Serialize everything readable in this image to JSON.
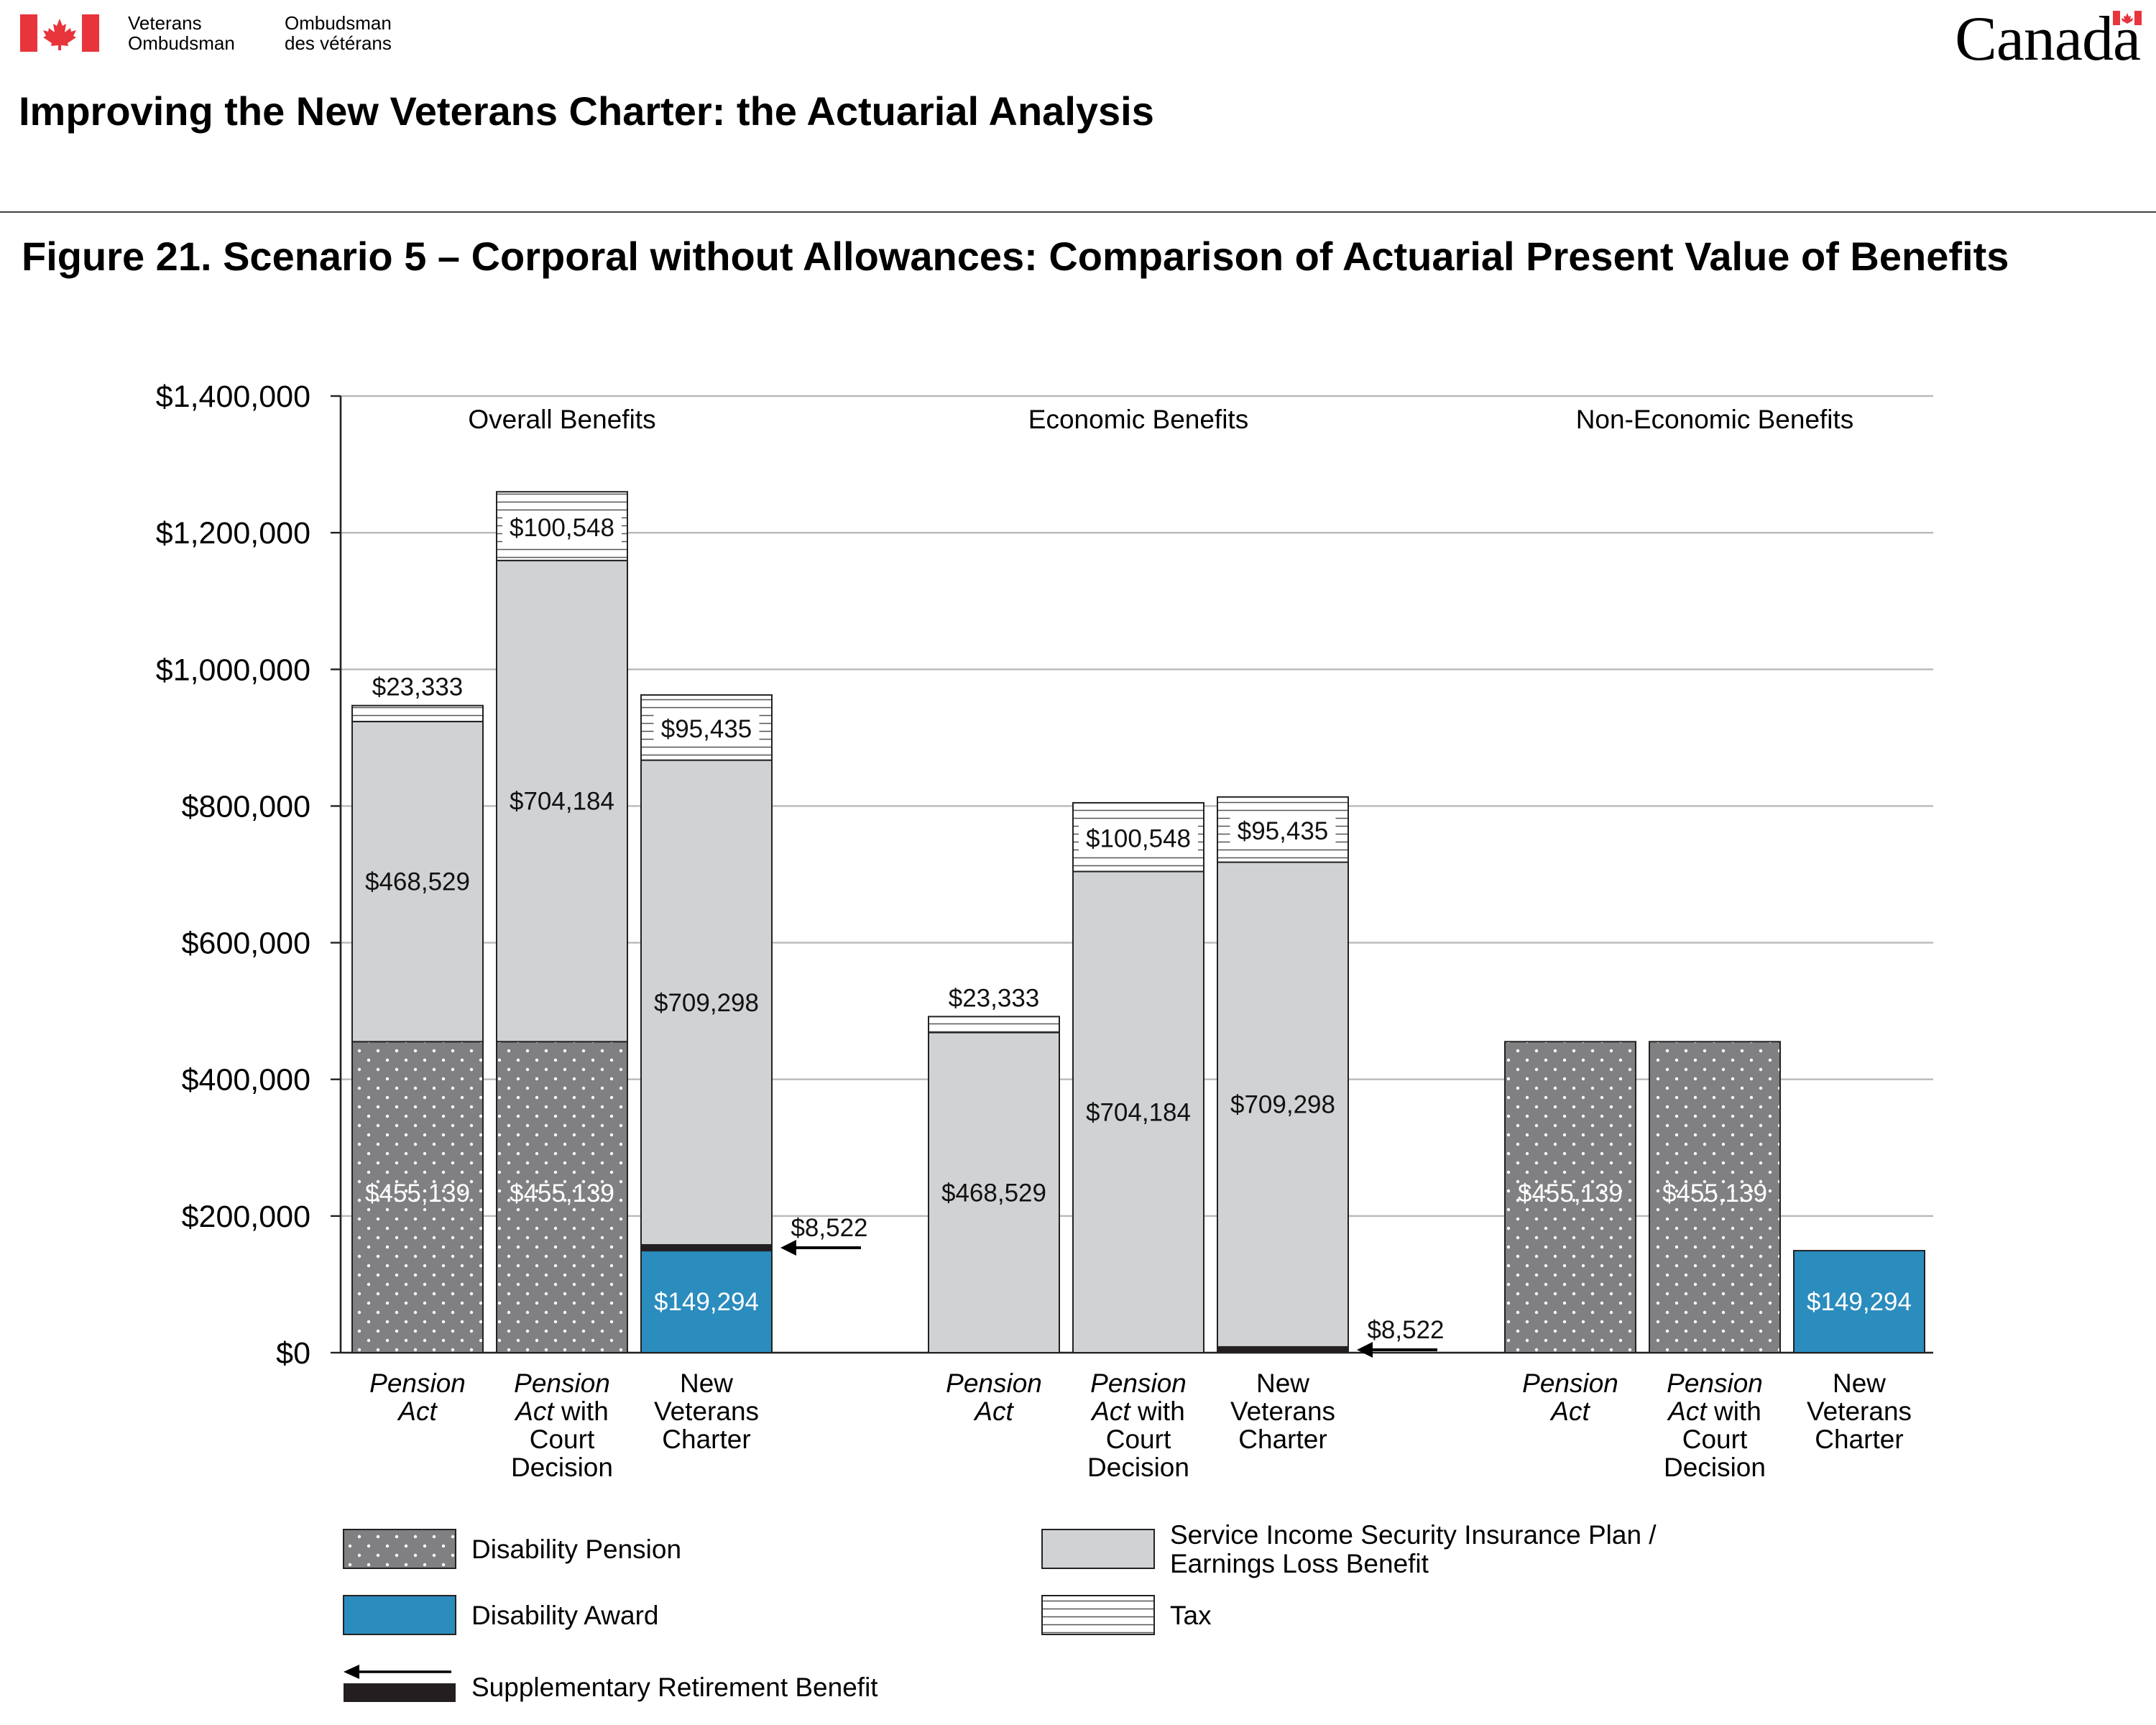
{
  "header": {
    "org_line1_en": "Veterans",
    "org_line2_en": "Ombudsman",
    "org_line1_fr": "Ombudsman",
    "org_line2_fr": "des vétérans",
    "wordmark": "Canada",
    "flag_color": "#e8343b"
  },
  "document_title": "Improving the New Veterans Charter: the Actuarial Analysis",
  "figure_title": "Figure 21. Scenario 5 – Corporal without Allowances: Comparison of Actuarial Present Value of Benefits",
  "chart_data": {
    "type": "bar",
    "stacked": true,
    "y_ticks": [
      "$1,400,000",
      "$1,200,000",
      "$1,000,000",
      "$800,000",
      "$600,000",
      "$400,000",
      "$200,000",
      "$0"
    ],
    "ylim": [
      0,
      1400000
    ],
    "grid": true,
    "groups": [
      {
        "name": "Overall Benefits",
        "bars": [
          {
            "label_parts": [
              [
                "Pension",
                "i"
              ],
              [
                "Act",
                "i"
              ]
            ],
            "segments": [
              {
                "kind": "Disability Pension",
                "value": 455139,
                "label": "$455,139"
              },
              {
                "kind": "Service Income Security Insurance Plan / Earnings Loss Benefit",
                "value": 468529,
                "label": "$468,529"
              },
              {
                "kind": "Tax",
                "value": 23333,
                "label": "$23,333"
              }
            ]
          },
          {
            "label_parts": [
              [
                "Pension",
                "i"
              ],
              [
                "Act|i| with",
                "m"
              ],
              [
                "Court",
                "n"
              ],
              [
                "Decision",
                "n"
              ]
            ],
            "segments": [
              {
                "kind": "Disability Pension",
                "value": 455139,
                "label": "$455,139"
              },
              {
                "kind": "Service Income Security Insurance Plan / Earnings Loss Benefit",
                "value": 704184,
                "label": "$704,184"
              },
              {
                "kind": "Tax",
                "value": 100548,
                "label": "$100,548"
              }
            ]
          },
          {
            "label_parts": [
              [
                "New",
                "n"
              ],
              [
                "Veterans",
                "n"
              ],
              [
                "Charter",
                "n"
              ]
            ],
            "segments": [
              {
                "kind": "Disability Award",
                "value": 149294,
                "label": "$149,294"
              },
              {
                "kind": "Supplementary Retirement Benefit",
                "value": 8522,
                "label": "$8,522"
              },
              {
                "kind": "Service Income Security Insurance Plan / Earnings Loss Benefit",
                "value": 709298,
                "label": "$709,298"
              },
              {
                "kind": "Tax",
                "value": 95435,
                "label": "$95,435"
              }
            ]
          }
        ]
      },
      {
        "name": "Economic Benefits",
        "bars": [
          {
            "label_parts": [
              [
                "Pension",
                "i"
              ],
              [
                "Act",
                "i"
              ]
            ],
            "segments": [
              {
                "kind": "Service Income Security Insurance Plan / Earnings Loss Benefit",
                "value": 468529,
                "label": "$468,529"
              },
              {
                "kind": "Tax",
                "value": 23333,
                "label": "$23,333"
              }
            ]
          },
          {
            "label_parts": [
              [
                "Pension",
                "i"
              ],
              [
                "Act|i| with",
                "m"
              ],
              [
                "Court",
                "n"
              ],
              [
                "Decision",
                "n"
              ]
            ],
            "segments": [
              {
                "kind": "Service Income Security Insurance Plan / Earnings Loss Benefit",
                "value": 704184,
                "label": "$704,184"
              },
              {
                "kind": "Tax",
                "value": 100548,
                "label": "$100,548"
              }
            ]
          },
          {
            "label_parts": [
              [
                "New",
                "n"
              ],
              [
                "Veterans",
                "n"
              ],
              [
                "Charter",
                "n"
              ]
            ],
            "segments": [
              {
                "kind": "Supplementary Retirement Benefit",
                "value": 8522,
                "label": "$8,522"
              },
              {
                "kind": "Service Income Security Insurance Plan / Earnings Loss Benefit",
                "value": 709298,
                "label": "$709,298"
              },
              {
                "kind": "Tax",
                "value": 95435,
                "label": "$95,435"
              }
            ]
          }
        ]
      },
      {
        "name": "Non-Economic Benefits",
        "bars": [
          {
            "label_parts": [
              [
                "Pension",
                "i"
              ],
              [
                "Act",
                "i"
              ]
            ],
            "segments": [
              {
                "kind": "Disability Pension",
                "value": 455139,
                "label": "$455,139"
              }
            ]
          },
          {
            "label_parts": [
              [
                "Pension",
                "i"
              ],
              [
                "Act|i| with",
                "m"
              ],
              [
                "Court",
                "n"
              ],
              [
                "Decision",
                "n"
              ]
            ],
            "segments": [
              {
                "kind": "Disability Pension",
                "value": 455139,
                "label": "$455,139"
              }
            ]
          },
          {
            "label_parts": [
              [
                "New",
                "n"
              ],
              [
                "Veterans",
                "n"
              ],
              [
                "Charter",
                "n"
              ]
            ],
            "segments": [
              {
                "kind": "Disability Award",
                "value": 149294,
                "label": "$149,294"
              }
            ]
          }
        ]
      }
    ],
    "legend": [
      {
        "kind": "Disability Pension",
        "text": [
          "Disability Pension"
        ]
      },
      {
        "kind": "Disability Award",
        "text": [
          "Disability Award"
        ]
      },
      {
        "kind": "Supplementary Retirement Benefit",
        "text": [
          "Supplementary Retirement Benefit"
        ]
      },
      {
        "kind": "Service Income Security Insurance Plan / Earnings Loss Benefit",
        "text": [
          "Service Income Security Insurance Plan /",
          "Earnings Loss Benefit"
        ]
      },
      {
        "kind": "Tax",
        "text": [
          "Tax"
        ]
      }
    ],
    "colors": {
      "Disability Pension": "#808083",
      "Disability Award": "#2b8cbe",
      "Supplementary Retirement Benefit": "#231f20",
      "Service Income Security Insurance Plan / Earnings Loss Benefit": "#d1d2d4",
      "Tax": "#ffffff"
    }
  }
}
